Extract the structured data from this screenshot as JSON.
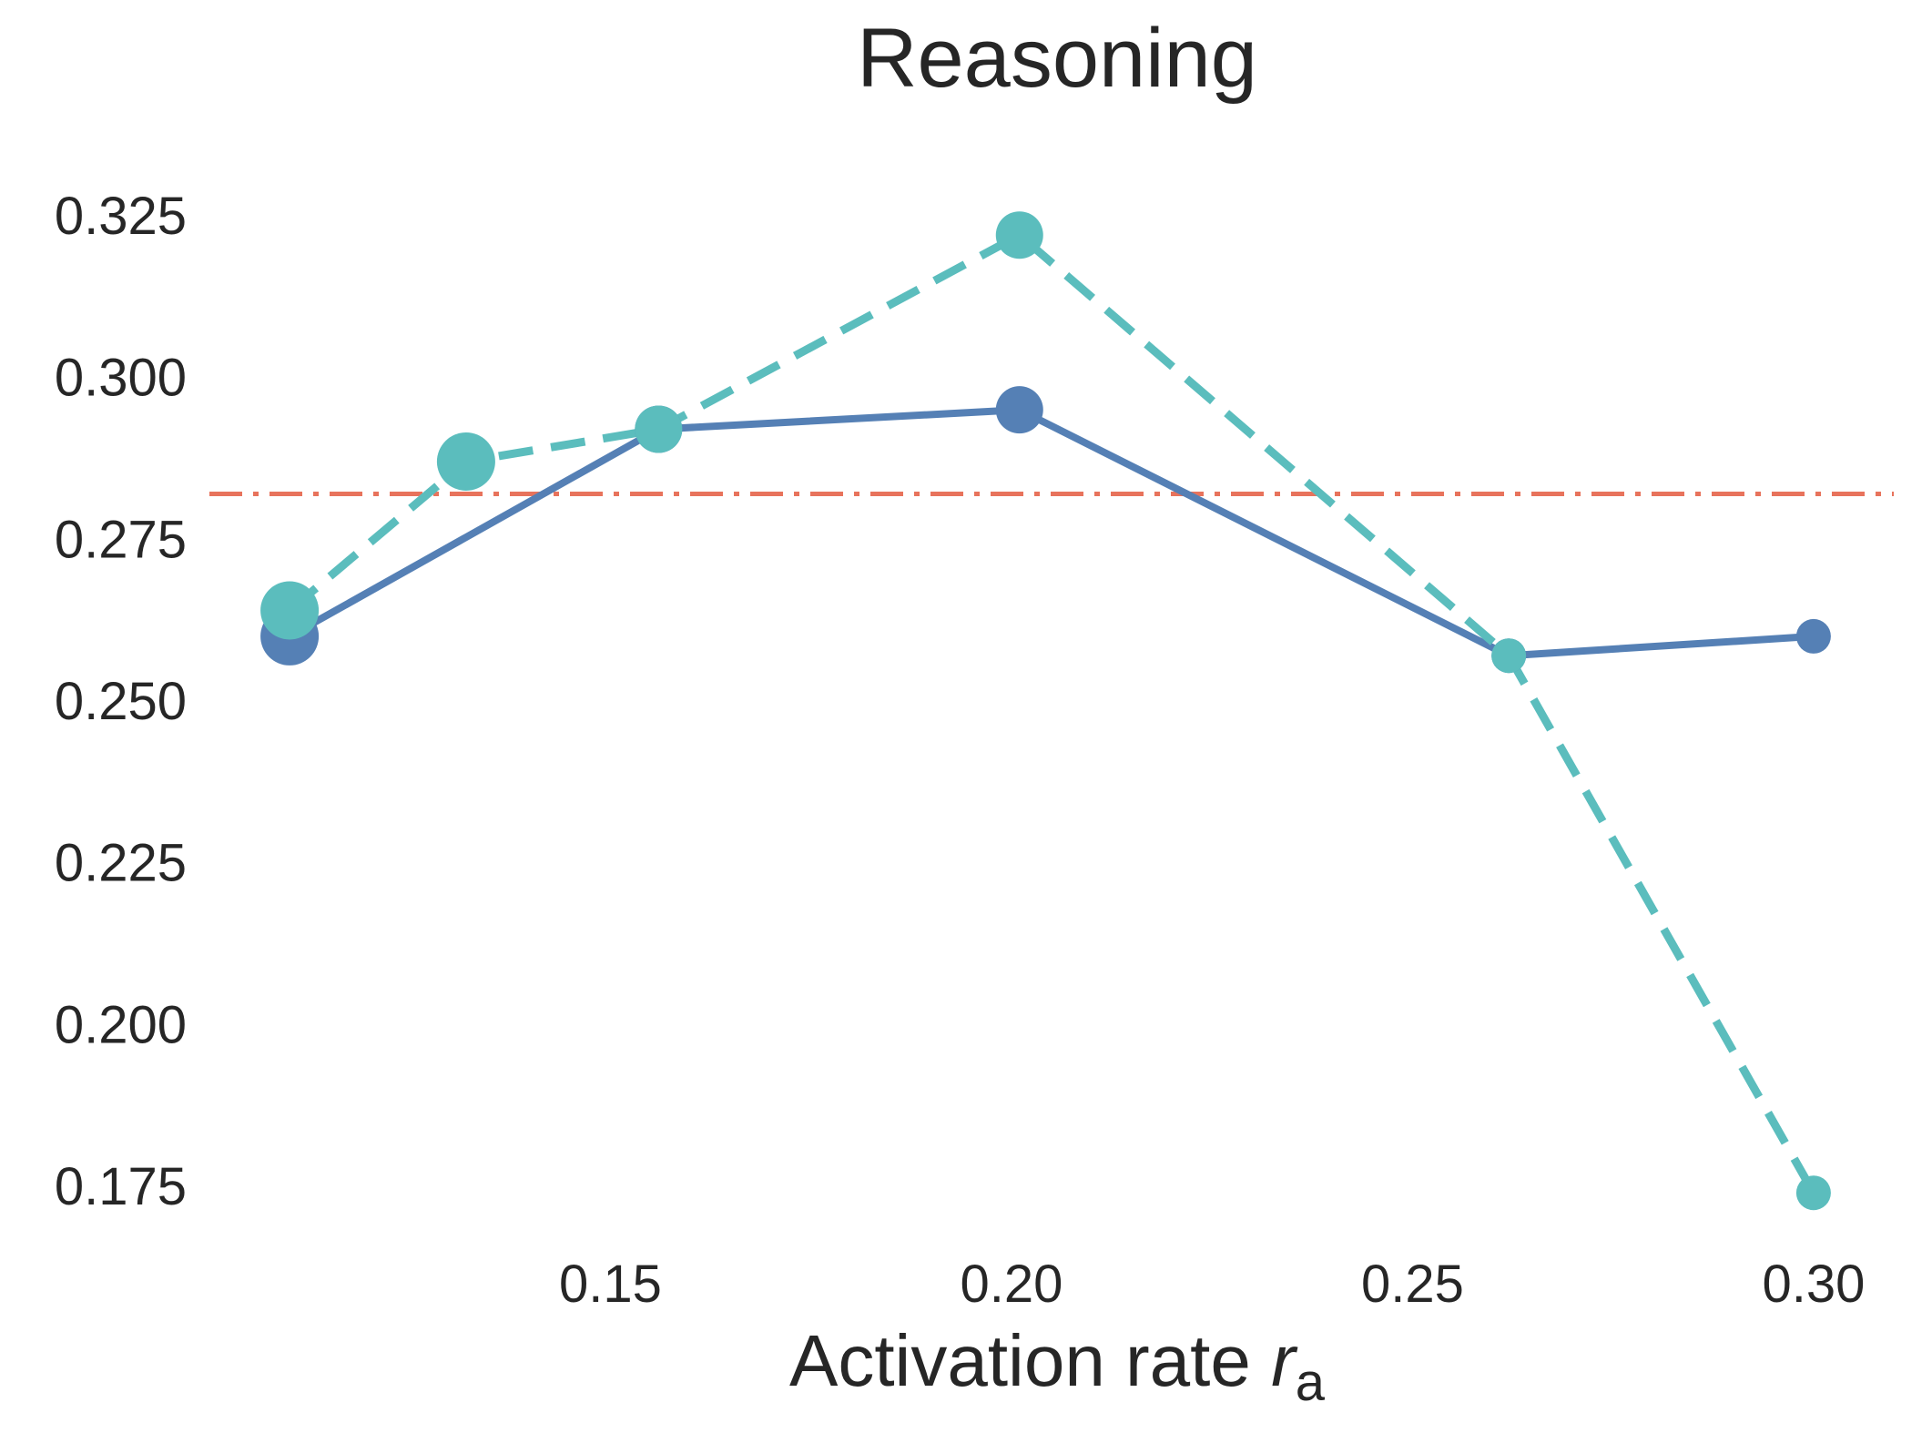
{
  "chart_data": {
    "type": "line",
    "title": "Reasoning",
    "xlabel_main": "Activation rate ",
    "xlabel_var": "r",
    "xlabel_sub": "a",
    "ylabel": "",
    "xlim": [
      0.1,
      0.31
    ],
    "ylim": [
      0.167,
      0.333
    ],
    "xticks": [
      0.15,
      0.2,
      0.25,
      0.3
    ],
    "xtick_labels": [
      "0.15",
      "0.20",
      "0.25",
      "0.30"
    ],
    "yticks": [
      0.175,
      0.2,
      0.225,
      0.25,
      0.275,
      0.3,
      0.325
    ],
    "ytick_labels": [
      "0.175",
      "0.200",
      "0.225",
      "0.250",
      "0.275",
      "0.300",
      "0.325"
    ],
    "grid": false,
    "series": [
      {
        "style": "solid",
        "color": "#5580b5",
        "points": [
          {
            "x": 0.11,
            "y": 0.26,
            "size": "large"
          },
          {
            "x": 0.156,
            "y": 0.292,
            "size": "medium"
          },
          {
            "x": 0.201,
            "y": 0.295,
            "size": "medium"
          },
          {
            "x": 0.262,
            "y": 0.257,
            "size": "small"
          },
          {
            "x": 0.3,
            "y": 0.26,
            "size": "small"
          }
        ]
      },
      {
        "style": "dashed",
        "color": "#5bbdbd",
        "points": [
          {
            "x": 0.11,
            "y": 0.264,
            "size": "large"
          },
          {
            "x": 0.132,
            "y": 0.287,
            "size": "large"
          },
          {
            "x": 0.156,
            "y": 0.292,
            "size": "medium"
          },
          {
            "x": 0.201,
            "y": 0.322,
            "size": "medium"
          },
          {
            "x": 0.262,
            "y": 0.257,
            "size": "small"
          },
          {
            "x": 0.3,
            "y": 0.174,
            "size": "small"
          }
        ]
      }
    ],
    "reference_line": {
      "y": 0.282,
      "style": "dashdot",
      "color": "#e8735c"
    }
  }
}
